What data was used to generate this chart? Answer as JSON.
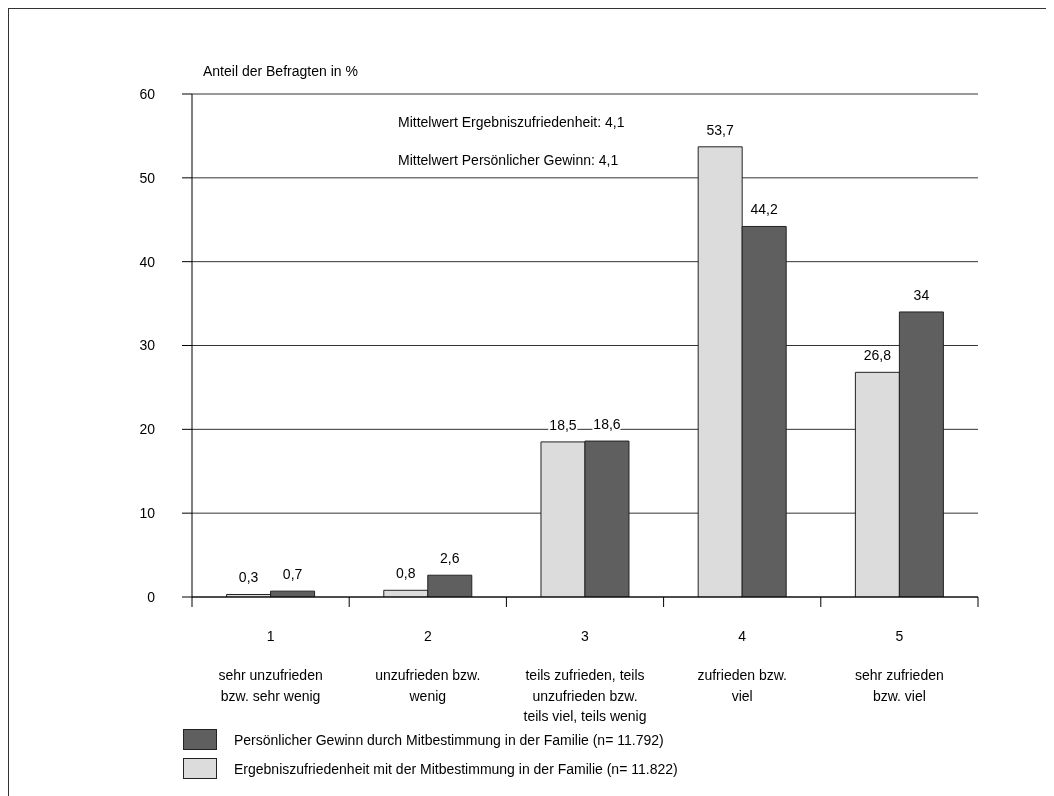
{
  "chart_data": {
    "type": "bar",
    "ylabel": "Anteil der Befragten in %",
    "annotations": [
      "Mittelwert Ergebniszufriedenheit: 4,1",
      "Mittelwert Persönlicher Gewinn: 4,1"
    ],
    "categories": [
      "1\nsehr unzufrieden\nbzw. sehr wenig",
      "2\nunzufrieden bzw.\nwenig",
      "3\nteils zufrieden, teils\nunzufrieden bzw.\nteils viel, teils wenig",
      "4\nzufrieden bzw.\nviel",
      "5\nsehr zufrieden\nbzw. viel"
    ],
    "series": [
      {
        "name": "Ergebniszufriedenheit mit der Mitbestimmung in der Familie (n= 11.822)",
        "color": "#dcdcdc",
        "values": [
          0.3,
          0.8,
          18.5,
          53.7,
          26.8
        ],
        "value_labels": [
          "0,3",
          "0,8",
          "18,5",
          "53,7",
          "26,8"
        ]
      },
      {
        "name": "Persönlicher Gewinn durch Mitbestimmung in der Familie (n= 11.792)",
        "color": "#5f5f5f",
        "values": [
          0.7,
          2.6,
          18.6,
          44.2,
          34
        ],
        "value_labels": [
          "0,7",
          "2,6",
          "18,6",
          "44,2",
          "34"
        ]
      }
    ],
    "ylim": [
      0,
      60
    ],
    "yticks": [
      0,
      10,
      20,
      30,
      40,
      50,
      60
    ],
    "grid": "y",
    "legend": "bottom"
  }
}
